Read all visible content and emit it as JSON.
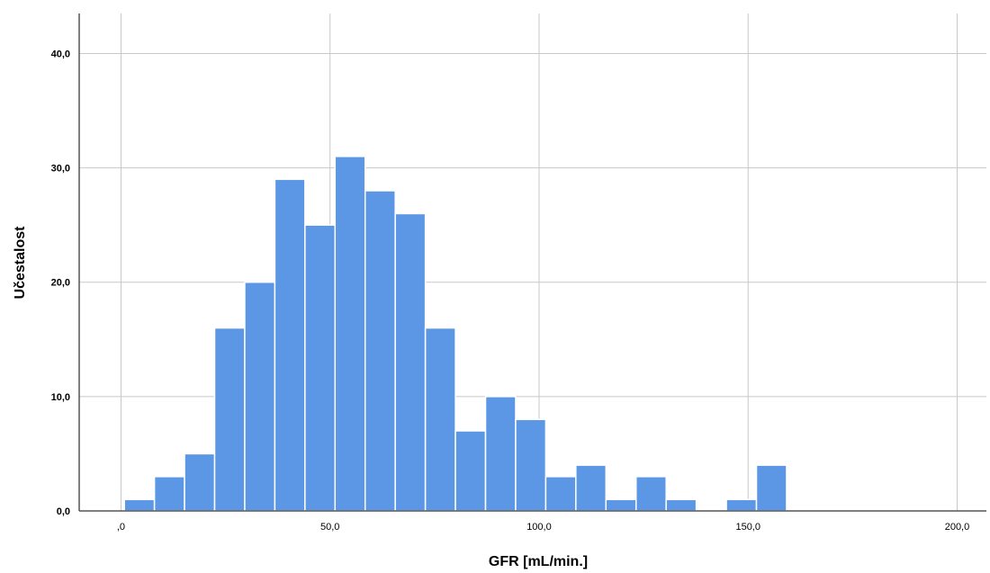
{
  "chart_data": {
    "type": "bar",
    "title": "",
    "xlabel": "GFR [mL/min.]",
    "ylabel": "Učestalost",
    "xlim": [
      -10,
      207
    ],
    "ylim": [
      0,
      43.5
    ],
    "x_ticks": [
      0,
      50,
      100,
      150,
      200
    ],
    "x_tick_labels": [
      ",0",
      "50,0",
      "100,0",
      "150,0",
      "200,0"
    ],
    "y_ticks": [
      0,
      10,
      20,
      30,
      40
    ],
    "y_tick_labels": [
      "0,0",
      "10,0",
      "20,0",
      "30,0",
      "40,0"
    ],
    "bin_width": 7.2,
    "bin_start": 0.8,
    "bins": [
      {
        "from": 0.8,
        "to": 8.0,
        "value": 1
      },
      {
        "from": 8.0,
        "to": 15.2,
        "value": 3
      },
      {
        "from": 15.2,
        "to": 22.4,
        "value": 5
      },
      {
        "from": 22.4,
        "to": 29.6,
        "value": 16
      },
      {
        "from": 29.6,
        "to": 36.8,
        "value": 20
      },
      {
        "from": 36.8,
        "to": 44.0,
        "value": 29
      },
      {
        "from": 44.0,
        "to": 51.2,
        "value": 25
      },
      {
        "from": 51.2,
        "to": 58.4,
        "value": 31
      },
      {
        "from": 58.4,
        "to": 65.6,
        "value": 28
      },
      {
        "from": 65.6,
        "to": 72.8,
        "value": 26
      },
      {
        "from": 72.8,
        "to": 80.0,
        "value": 16
      },
      {
        "from": 80.0,
        "to": 87.2,
        "value": 7
      },
      {
        "from": 87.2,
        "to": 94.4,
        "value": 10
      },
      {
        "from": 94.4,
        "to": 101.6,
        "value": 8
      },
      {
        "from": 101.6,
        "to": 108.8,
        "value": 3
      },
      {
        "from": 108.8,
        "to": 116.0,
        "value": 4
      },
      {
        "from": 116.0,
        "to": 123.2,
        "value": 1
      },
      {
        "from": 123.2,
        "to": 130.4,
        "value": 3
      },
      {
        "from": 130.4,
        "to": 137.6,
        "value": 1
      },
      {
        "from": 137.6,
        "to": 144.8,
        "value": 0
      },
      {
        "from": 144.8,
        "to": 152.0,
        "value": 1
      },
      {
        "from": 152.0,
        "to": 159.2,
        "value": 4
      }
    ],
    "grid": true,
    "bar_color": "#5B97E4",
    "bar_edge_color": "#ffffff",
    "grid_color": "#c8c8c8",
    "axis_color": "#555555"
  }
}
